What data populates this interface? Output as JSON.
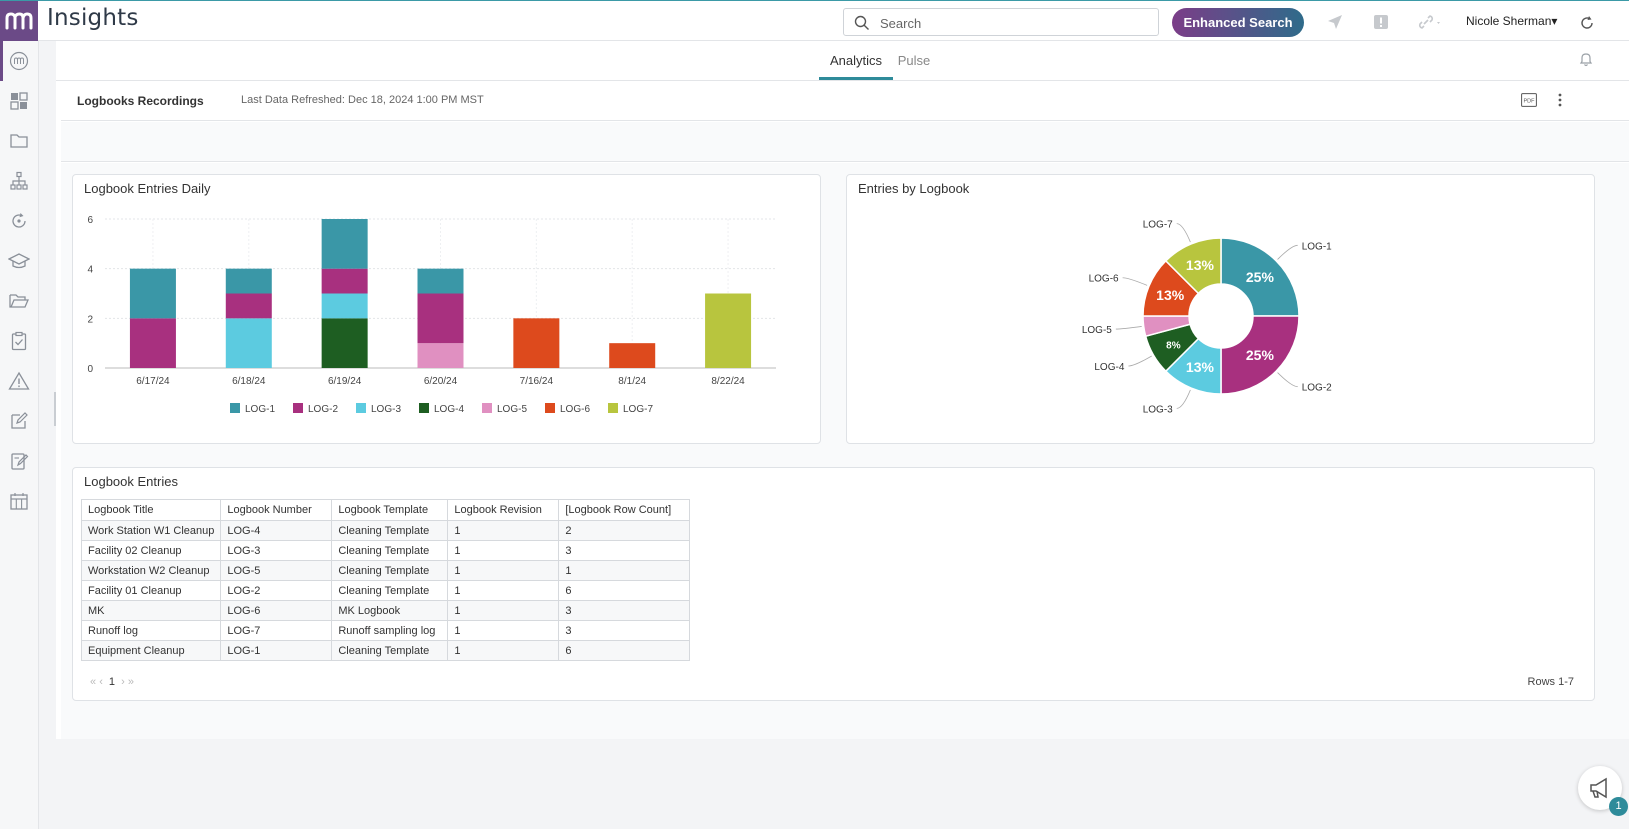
{
  "app": {
    "title": "Insights",
    "logo_text": "m"
  },
  "header": {
    "search_placeholder": "Search",
    "enhanced_search_label": "Enhanced Search",
    "user_name": "Nicole Sherman▾"
  },
  "tabs": [
    {
      "label": "Analytics",
      "active": true
    },
    {
      "label": "Pulse",
      "active": false
    }
  ],
  "dashboard": {
    "title": "Logbooks Recordings",
    "refreshed": "Last Data Refreshed: Dec 18, 2024 1:00 PM MST"
  },
  "colors": {
    "LOG-1": "#3a97a7",
    "LOG-2": "#a8307f",
    "LOG-3": "#5ccbe0",
    "LOG-4": "#1e5e22",
    "LOG-5": "#e090c1",
    "LOG-6": "#dd4a1d",
    "LOG-7": "#b8c53e"
  },
  "chart_data": [
    {
      "type": "bar",
      "stacked": true,
      "title": "Logbook Entries Daily",
      "categories": [
        "6/17/24",
        "6/18/24",
        "6/19/24",
        "6/20/24",
        "7/16/24",
        "8/1/24",
        "8/22/24"
      ],
      "ylim": [
        0,
        6
      ],
      "yticks": [
        0,
        2,
        4,
        6
      ],
      "series": [
        {
          "name": "LOG-1",
          "values": [
            2,
            1,
            2,
            1,
            0,
            0,
            0
          ]
        },
        {
          "name": "LOG-2",
          "values": [
            2,
            1,
            1,
            2,
            0,
            0,
            0
          ]
        },
        {
          "name": "LOG-3",
          "values": [
            0,
            2,
            1,
            0,
            0,
            0,
            0
          ]
        },
        {
          "name": "LOG-4",
          "values": [
            0,
            0,
            2,
            0,
            0,
            0,
            0
          ]
        },
        {
          "name": "LOG-5",
          "values": [
            0,
            0,
            0,
            1,
            0,
            0,
            0
          ]
        },
        {
          "name": "LOG-6",
          "values": [
            0,
            0,
            0,
            0,
            2,
            1,
            0
          ]
        },
        {
          "name": "LOG-7",
          "values": [
            0,
            0,
            0,
            0,
            0,
            0,
            3
          ]
        }
      ],
      "legend": "bottom"
    },
    {
      "type": "pie",
      "donut": true,
      "title": "Entries by Logbook",
      "slices": [
        {
          "name": "LOG-1",
          "value": 6,
          "label": "25%"
        },
        {
          "name": "LOG-2",
          "value": 6,
          "label": "25%"
        },
        {
          "name": "LOG-3",
          "value": 3,
          "label": "13%"
        },
        {
          "name": "LOG-4",
          "value": 2,
          "label": "8%"
        },
        {
          "name": "LOG-5",
          "value": 1,
          "label": ""
        },
        {
          "name": "LOG-6",
          "value": 3,
          "label": "13%"
        },
        {
          "name": "LOG-7",
          "value": 3,
          "label": "13%"
        }
      ]
    }
  ],
  "table": {
    "title": "Logbook Entries",
    "columns": [
      "Logbook Title",
      "Logbook Number",
      "Logbook Template",
      "Logbook Revision",
      "[Logbook Row Count]"
    ],
    "rows": [
      [
        "Work Station W1 Cleanup",
        "LOG-4",
        "Cleaning Template",
        "1",
        "2"
      ],
      [
        "Facility 02 Cleanup",
        "LOG-3",
        "Cleaning Template",
        "1",
        "3"
      ],
      [
        "Workstation W2 Cleanup",
        "LOG-5",
        "Cleaning Template",
        "1",
        "1"
      ],
      [
        "Facility 01 Cleanup",
        "LOG-2",
        "Cleaning Template",
        "1",
        "6"
      ],
      [
        "MK",
        "LOG-6",
        "MK Logbook",
        "1",
        "3"
      ],
      [
        "Runoff log",
        "LOG-7",
        "Runoff sampling log",
        "1",
        "3"
      ],
      [
        "Equipment Cleanup",
        "LOG-1",
        "Cleaning Template",
        "1",
        "6"
      ]
    ],
    "pager": {
      "first": "«",
      "prev": "‹",
      "page": "1",
      "next": "›",
      "last": "»"
    },
    "rows_info": "Rows 1-7"
  },
  "notifications": {
    "chat_badge": "1"
  }
}
